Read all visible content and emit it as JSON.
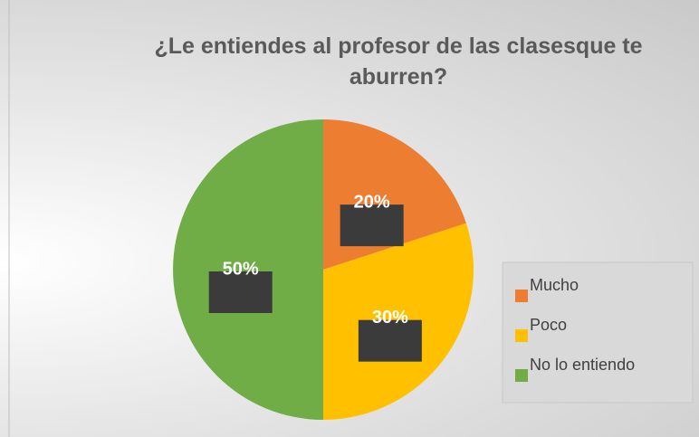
{
  "chart_data": {
    "type": "pie",
    "title": "¿Le entiendes al profesor de las clasesque te aburren?",
    "categories": [
      "Mucho",
      "Poco",
      "No lo entiendo"
    ],
    "values": [
      20,
      30,
      50
    ],
    "value_labels": [
      "20%",
      "30%",
      "50%"
    ],
    "colors": [
      "#ED7D31",
      "#FFC000",
      "#70AD47"
    ],
    "legend": "right"
  }
}
